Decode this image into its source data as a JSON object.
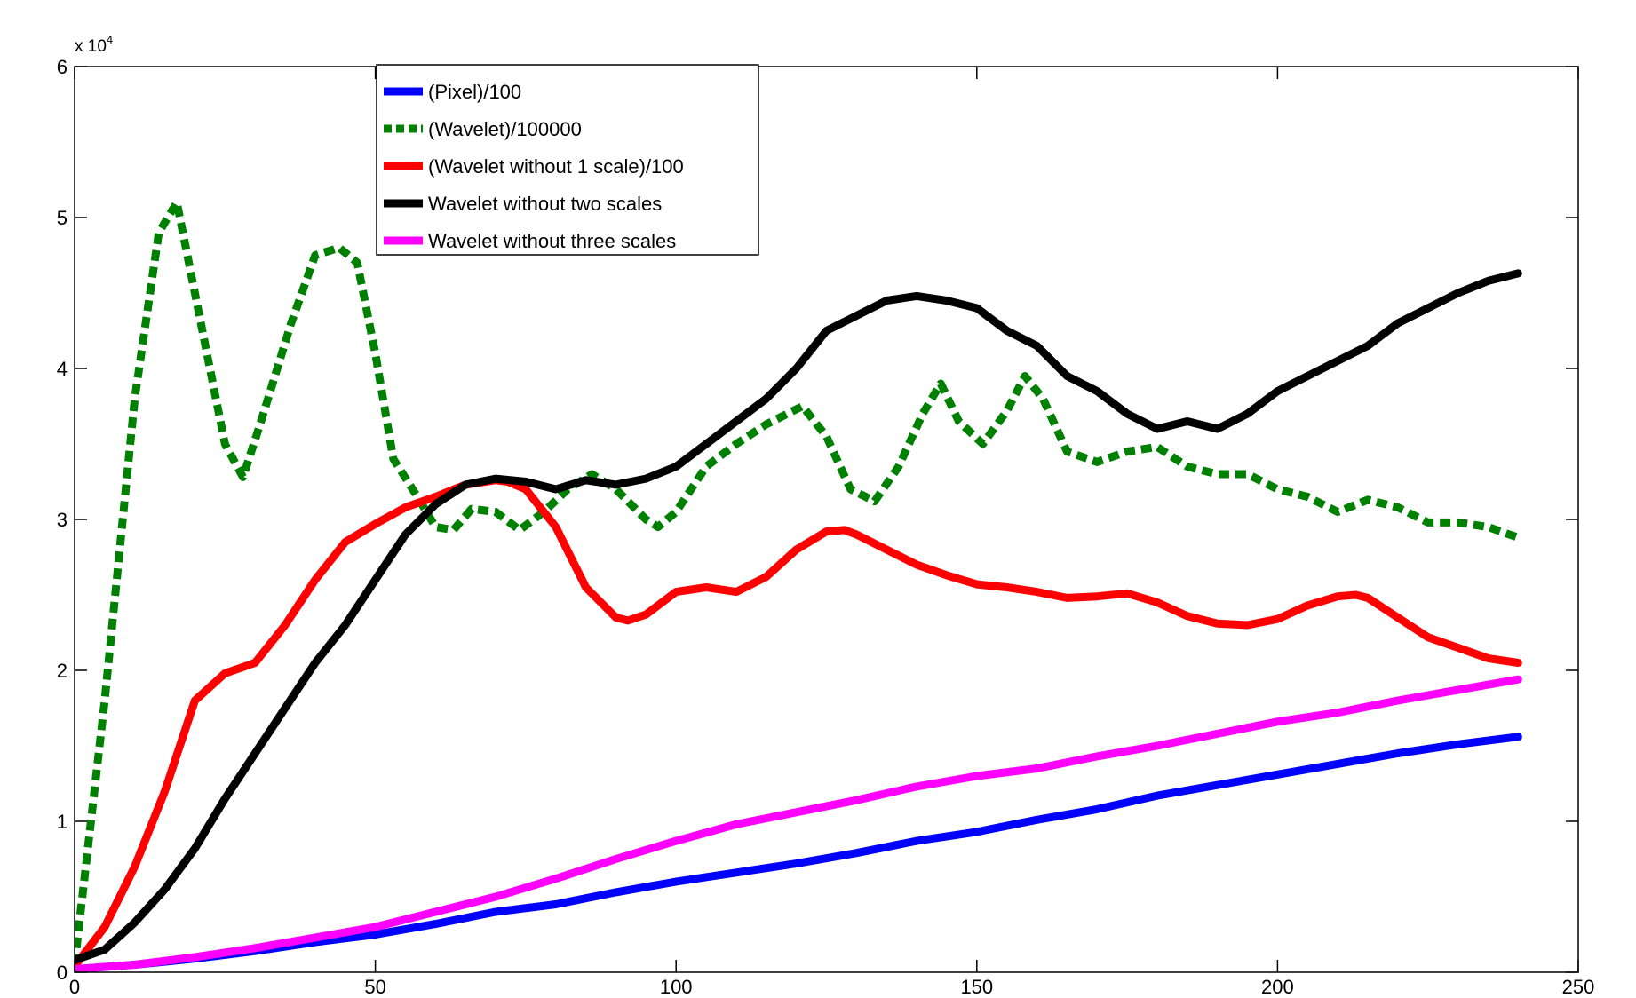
{
  "chart_data": {
    "type": "line",
    "title": "",
    "xlabel": "",
    "ylabel": "",
    "xlim": [
      0,
      250
    ],
    "ylim": [
      0,
      60000
    ],
    "y_exponent_label": "x 10",
    "y_exponent_power": "4",
    "x_ticks": [
      0,
      50,
      100,
      150,
      200,
      250
    ],
    "y_ticks": [
      0,
      10000,
      20000,
      30000,
      40000,
      50000,
      60000
    ],
    "y_tick_labels": [
      "0",
      "1",
      "2",
      "3",
      "4",
      "5",
      "6"
    ],
    "grid": false,
    "legend_position": "top-center",
    "series": [
      {
        "name": "(Pixel)/100",
        "color": "#0000ff",
        "dash": "solid",
        "x": [
          0,
          10,
          20,
          30,
          40,
          50,
          60,
          70,
          80,
          90,
          100,
          110,
          120,
          130,
          140,
          150,
          160,
          170,
          180,
          190,
          200,
          210,
          220,
          230,
          240
        ],
        "y": [
          200,
          500,
          900,
          1400,
          2000,
          2500,
          3200,
          4000,
          4500,
          5300,
          6000,
          6600,
          7200,
          7900,
          8700,
          9300,
          10100,
          10800,
          11700,
          12400,
          13100,
          13800,
          14500,
          15100,
          15600
        ]
      },
      {
        "name": "(Wavelet)/100000",
        "color": "#008000",
        "dash": "dashed",
        "x": [
          0,
          5,
          10,
          14,
          17,
          20,
          25,
          28,
          31,
          36,
          40,
          44,
          47,
          50,
          53,
          57,
          60,
          63,
          66,
          70,
          74,
          78,
          82,
          86,
          90,
          95,
          97,
          100,
          105,
          110,
          115,
          121,
          125,
          129,
          133,
          137,
          141,
          144,
          147,
          151,
          155,
          158,
          161,
          165,
          170,
          175,
          180,
          185,
          190,
          195,
          200,
          205,
          210,
          215,
          220,
          225,
          230,
          235,
          240
        ],
        "y": [
          500,
          18000,
          38000,
          49000,
          51000,
          45000,
          35000,
          32800,
          36500,
          43000,
          47500,
          48000,
          47000,
          41000,
          34000,
          31500,
          29500,
          29300,
          30700,
          30500,
          29300,
          30500,
          32000,
          33000,
          32000,
          30000,
          29500,
          30500,
          33500,
          35000,
          36300,
          37500,
          35500,
          32000,
          31200,
          33500,
          37000,
          39000,
          36500,
          35000,
          37200,
          39500,
          38000,
          34500,
          33800,
          34500,
          34800,
          33500,
          33000,
          33000,
          32000,
          31500,
          30500,
          31300,
          30800,
          29800,
          29800,
          29500,
          28800
        ]
      },
      {
        "name": "(Wavelet without 1 scale)/100",
        "color": "#ff0000",
        "dash": "solid",
        "x": [
          0,
          5,
          10,
          15,
          20,
          25,
          30,
          35,
          40,
          45,
          50,
          55,
          60,
          65,
          70,
          72,
          75,
          80,
          85,
          90,
          92,
          95,
          100,
          105,
          110,
          115,
          120,
          125,
          128,
          130,
          135,
          140,
          145,
          150,
          155,
          160,
          165,
          170,
          175,
          180,
          185,
          190,
          195,
          200,
          205,
          210,
          213,
          215,
          220,
          225,
          230,
          235,
          240
        ],
        "y": [
          400,
          3000,
          7000,
          12000,
          18000,
          19800,
          20500,
          23000,
          26000,
          28500,
          29700,
          30800,
          31500,
          32300,
          32600,
          32500,
          32000,
          29500,
          25500,
          23500,
          23300,
          23700,
          25200,
          25500,
          25200,
          26200,
          28000,
          29200,
          29300,
          29000,
          28000,
          27000,
          26300,
          25700,
          25500,
          25200,
          24800,
          24900,
          25100,
          24500,
          23600,
          23100,
          23000,
          23400,
          24300,
          24900,
          25000,
          24800,
          23500,
          22200,
          21500,
          20800,
          20500
        ]
      },
      {
        "name": "Wavelet without two scales",
        "color": "#000000",
        "dash": "solid",
        "x": [
          0,
          5,
          10,
          15,
          20,
          25,
          30,
          35,
          40,
          45,
          50,
          55,
          60,
          65,
          70,
          75,
          80,
          85,
          90,
          95,
          100,
          105,
          110,
          115,
          120,
          125,
          130,
          135,
          140,
          145,
          150,
          155,
          160,
          165,
          170,
          175,
          180,
          185,
          190,
          195,
          200,
          205,
          210,
          215,
          220,
          225,
          230,
          235,
          240
        ],
        "y": [
          800,
          1500,
          3300,
          5500,
          8200,
          11500,
          14500,
          17500,
          20500,
          23000,
          26000,
          29000,
          31000,
          32300,
          32700,
          32500,
          32000,
          32600,
          32300,
          32700,
          33500,
          35000,
          36500,
          38000,
          40000,
          42500,
          43500,
          44500,
          44800,
          44500,
          44000,
          42500,
          41500,
          39500,
          38500,
          37000,
          36000,
          36500,
          36000,
          37000,
          38500,
          39500,
          40500,
          41500,
          43000,
          44000,
          45000,
          45800,
          46300
        ]
      },
      {
        "name": "Wavelet without three scales",
        "color": "#ff00ff",
        "dash": "solid",
        "x": [
          0,
          10,
          20,
          30,
          40,
          50,
          60,
          70,
          80,
          90,
          100,
          110,
          120,
          130,
          140,
          150,
          160,
          170,
          180,
          190,
          200,
          210,
          220,
          230,
          240
        ],
        "y": [
          200,
          500,
          1000,
          1600,
          2300,
          3000,
          4000,
          5000,
          6200,
          7500,
          8700,
          9800,
          10600,
          11400,
          12300,
          13000,
          13500,
          14300,
          15000,
          15800,
          16600,
          17200,
          18000,
          18700,
          19400
        ]
      }
    ]
  }
}
